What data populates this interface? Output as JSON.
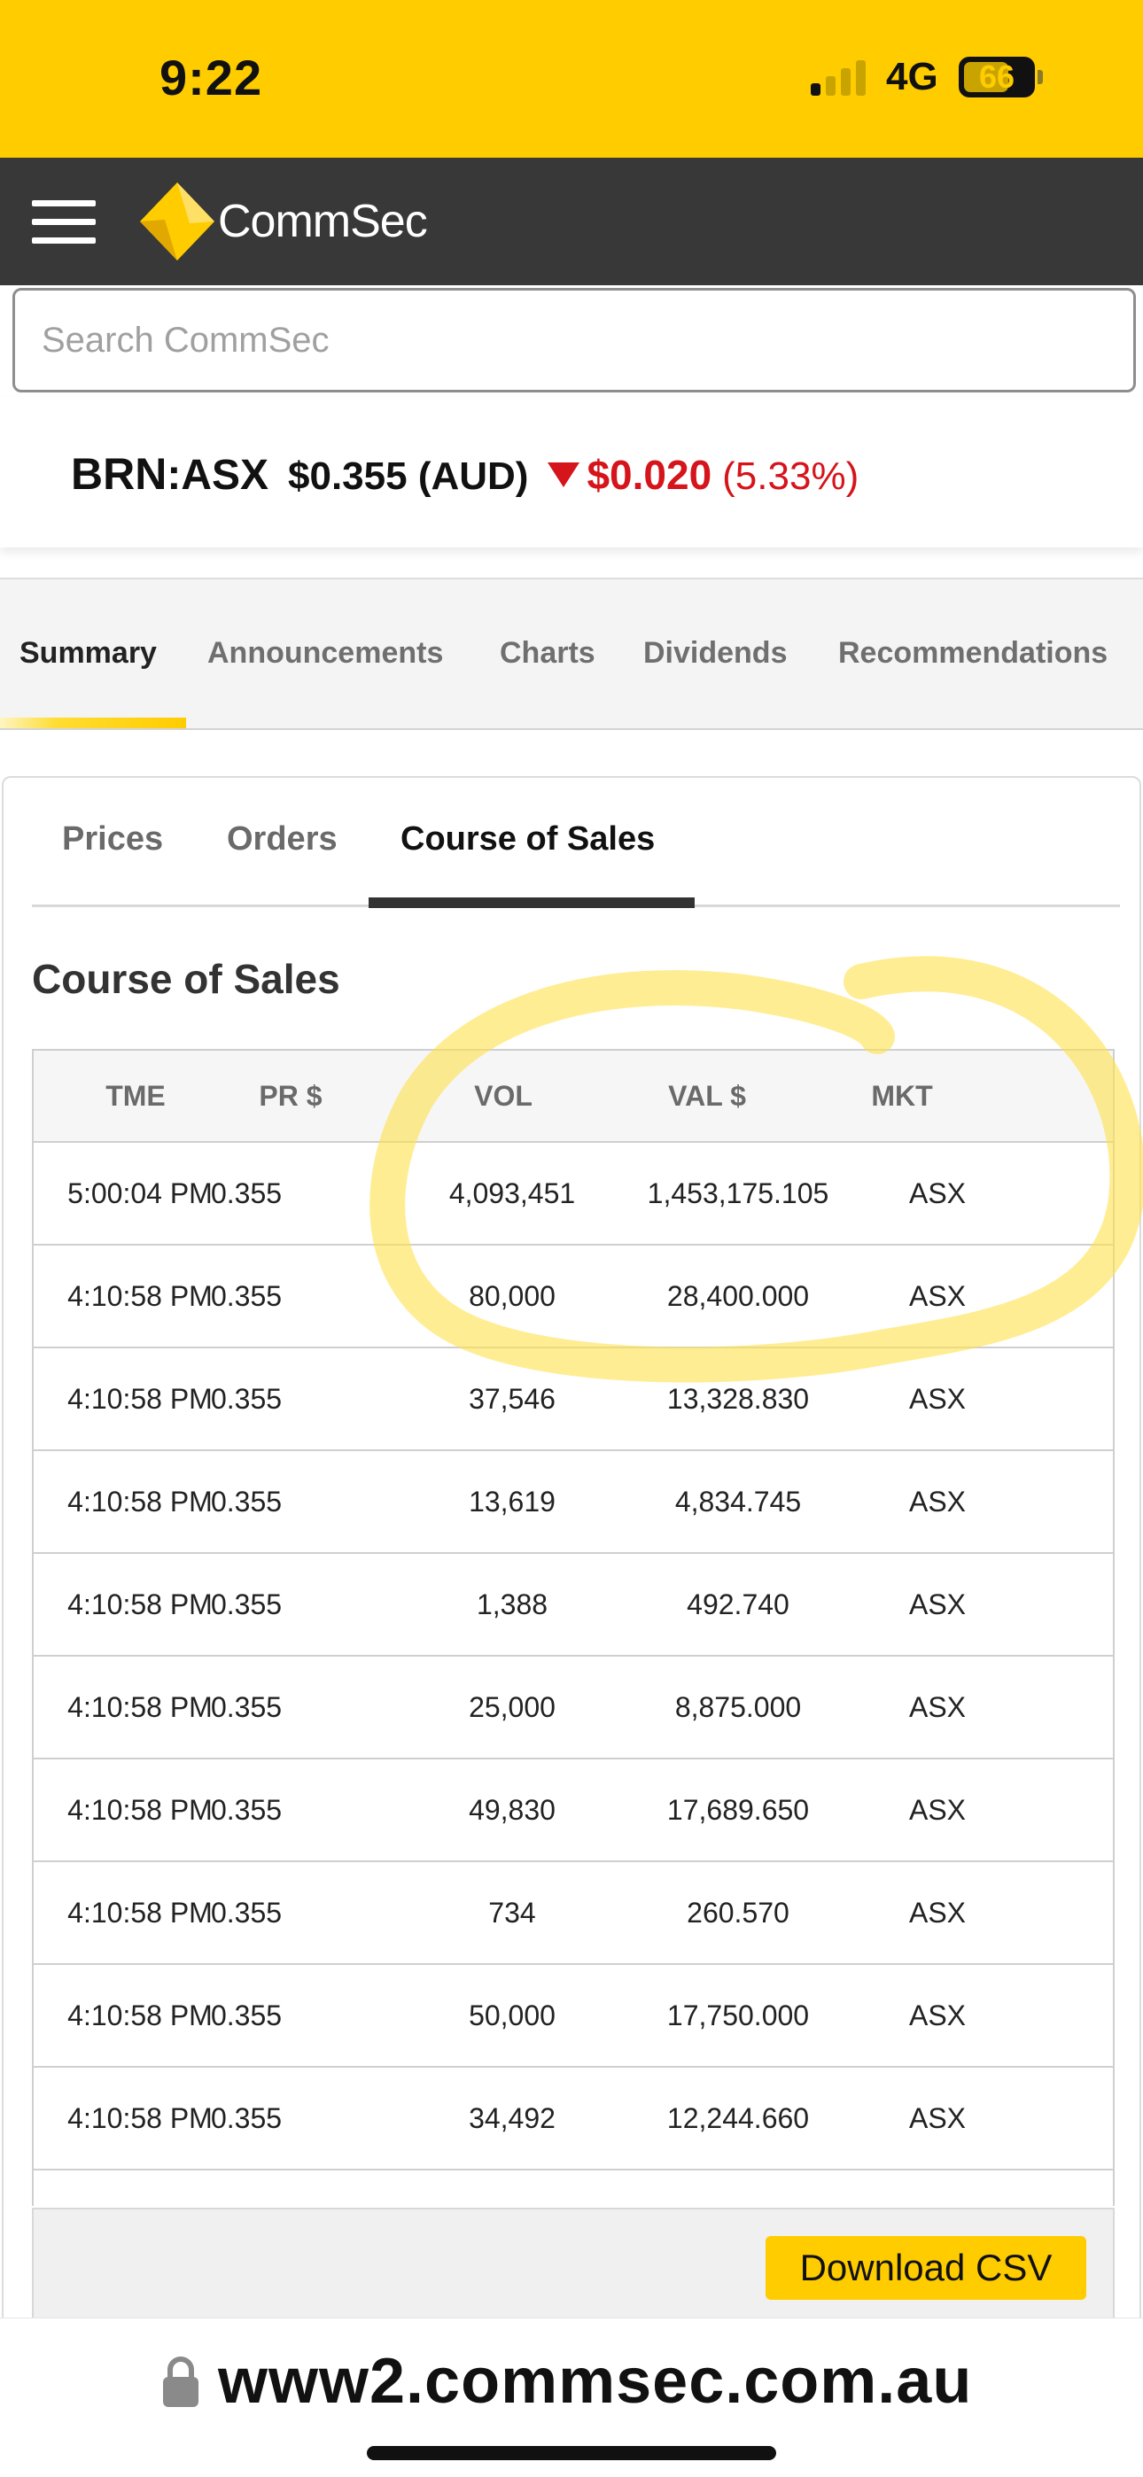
{
  "status_bar": {
    "time": "9:22",
    "network": "4G",
    "battery": "66"
  },
  "header": {
    "brand": "CommSec"
  },
  "search": {
    "placeholder": "Search CommSec"
  },
  "quote": {
    "symbol": "BRN",
    "exchange": ":ASX",
    "price": "$0.355 (AUD)",
    "change": "$0.020",
    "change_pct": "(5.33%)"
  },
  "main_tabs": [
    {
      "label": "Summary",
      "active": true
    },
    {
      "label": "Announcements"
    },
    {
      "label": "Charts"
    },
    {
      "label": "Dividends"
    },
    {
      "label": "Recommendations"
    }
  ],
  "sub_tabs": [
    {
      "label": "Prices"
    },
    {
      "label": "Orders"
    },
    {
      "label": "Course of Sales",
      "active": true
    }
  ],
  "section_title": "Course of Sales",
  "table": {
    "headers": [
      "TME",
      "PR $",
      "VOL",
      "VAL $",
      "MKT"
    ],
    "rows": [
      [
        "5:00:04 PM",
        "0.355",
        "4,093,451",
        "1,453,175.105",
        "ASX"
      ],
      [
        "4:10:58 PM",
        "0.355",
        "80,000",
        "28,400.000",
        "ASX"
      ],
      [
        "4:10:58 PM",
        "0.355",
        "37,546",
        "13,328.830",
        "ASX"
      ],
      [
        "4:10:58 PM",
        "0.355",
        "13,619",
        "4,834.745",
        "ASX"
      ],
      [
        "4:10:58 PM",
        "0.355",
        "1,388",
        "492.740",
        "ASX"
      ],
      [
        "4:10:58 PM",
        "0.355",
        "25,000",
        "8,875.000",
        "ASX"
      ],
      [
        "4:10:58 PM",
        "0.355",
        "49,830",
        "17,689.650",
        "ASX"
      ],
      [
        "4:10:58 PM",
        "0.355",
        "734",
        "260.570",
        "ASX"
      ],
      [
        "4:10:58 PM",
        "0.355",
        "50,000",
        "17,750.000",
        "ASX"
      ],
      [
        "4:10:58 PM",
        "0.355",
        "34,492",
        "12,244.660",
        "ASX"
      ]
    ]
  },
  "download_button": "Download CSV",
  "url_bar": {
    "url": "www2.commsec.com.au"
  },
  "colors": {
    "brand_yellow": "#ffcc00",
    "header_dark": "#383838",
    "negative_red": "#d5141b",
    "highlight": "#ffe14d"
  }
}
